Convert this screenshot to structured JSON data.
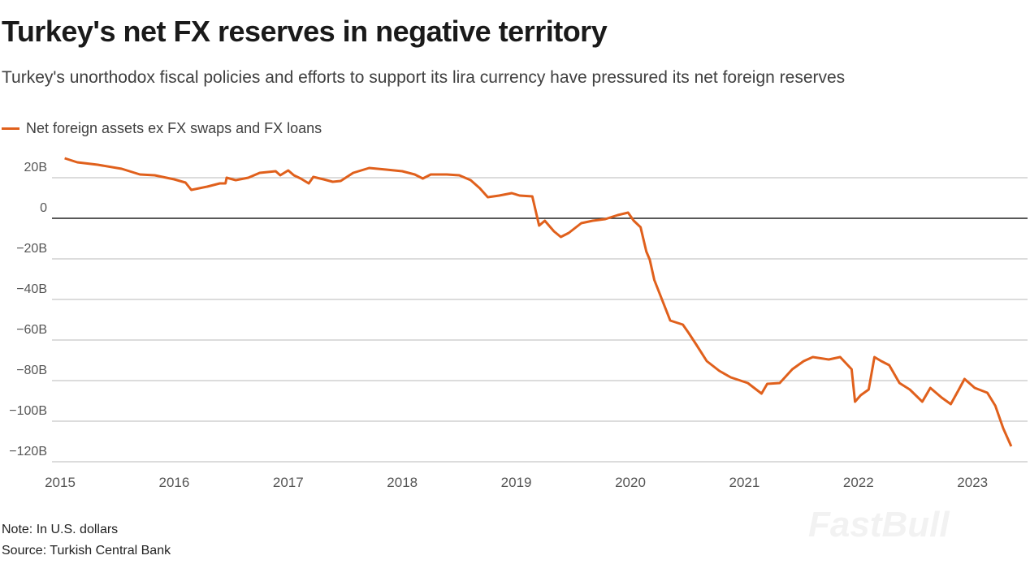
{
  "title": "Turkey's net FX reserves in negative territory",
  "subtitle": "Turkey's unorthodox fiscal policies and efforts to support its lira currency have pressured its net foreign reserves",
  "note": "Note: In U.S. dollars",
  "source": "Source: Turkish Central Bank",
  "watermark": "FastBull",
  "chart_data": {
    "type": "line",
    "title": "Turkey's net FX reserves in negative territory",
    "xlabel": "",
    "ylabel": "",
    "xlim": [
      2015,
      2023.4
    ],
    "ylim": [
      -120,
      30
    ],
    "grid": true,
    "legend_placement": "top-left",
    "x_ticks": [
      {
        "v": 2015,
        "label": "2015"
      },
      {
        "v": 2016,
        "label": "2016"
      },
      {
        "v": 2017,
        "label": "2017"
      },
      {
        "v": 2018,
        "label": "2018"
      },
      {
        "v": 2019,
        "label": "2019"
      },
      {
        "v": 2020,
        "label": "2020"
      },
      {
        "v": 2021,
        "label": "2021"
      },
      {
        "v": 2022,
        "label": "2022"
      },
      {
        "v": 2023,
        "label": "2023"
      }
    ],
    "y_ticks": [
      {
        "v": 20,
        "label": "20B"
      },
      {
        "v": 0,
        "label": "0"
      },
      {
        "v": -20,
        "label": "-20B"
      },
      {
        "v": -40,
        "label": "-40B"
      },
      {
        "v": -60,
        "label": "-60B"
      },
      {
        "v": -80,
        "label": "-80B"
      },
      {
        "v": -100,
        "label": "-100B"
      },
      {
        "v": -120,
        "label": "-120B"
      }
    ],
    "series": [
      {
        "name": "Net foreign assets ex FX swaps and FX loans",
        "color": "#e0601c",
        "x": [
          2015.04,
          2015.15,
          2015.33,
          2015.54,
          2015.7,
          2015.83,
          2016.0,
          2016.1,
          2016.15,
          2016.29,
          2016.4,
          2016.45,
          2016.46,
          2016.54,
          2016.65,
          2016.75,
          2016.89,
          2016.93,
          2017.0,
          2017.05,
          2017.11,
          2017.18,
          2017.22,
          2017.31,
          2017.39,
          2017.46,
          2017.57,
          2017.71,
          2017.86,
          2018.0,
          2018.11,
          2018.18,
          2018.25,
          2018.39,
          2018.5,
          2018.6,
          2018.68,
          2018.75,
          2018.85,
          2018.96,
          2019.03,
          2019.14,
          2019.17,
          2019.2,
          2019.25,
          2019.33,
          2019.39,
          2019.46,
          2019.57,
          2019.67,
          2019.78,
          2019.89,
          2019.98,
          2020.03,
          2020.09,
          2020.14,
          2020.17,
          2020.21,
          2020.28,
          2020.35,
          2020.46,
          2020.51,
          2020.58,
          2020.67,
          2020.78,
          2020.88,
          2021.03,
          2021.15,
          2021.2,
          2021.31,
          2021.42,
          2021.52,
          2021.6,
          2021.74,
          2021.84,
          2021.94,
          2021.97,
          2022.02,
          2022.09,
          2022.14,
          2022.2,
          2022.27,
          2022.36,
          2022.45,
          2022.56,
          2022.63,
          2022.73,
          2022.81,
          2022.88,
          2022.93,
          2023.02,
          2023.13,
          2023.2,
          2023.27,
          2023.34
        ],
        "y": [
          29.6,
          27.6,
          26.4,
          24.4,
          21.6,
          21.2,
          19.2,
          17.6,
          14,
          15.6,
          17.2,
          17.2,
          20,
          18.8,
          20,
          22.4,
          23.2,
          21.2,
          23.6,
          21.2,
          19.6,
          17.2,
          20.4,
          19.2,
          18,
          18.4,
          22.4,
          24.8,
          24,
          23.2,
          21.6,
          19.6,
          21.6,
          21.6,
          21.2,
          18.8,
          14.8,
          10.4,
          11.2,
          12.4,
          11.2,
          10.8,
          3.6,
          -3.6,
          -1.2,
          -6.4,
          -9.2,
          -7.2,
          -2.4,
          -1.2,
          -0.4,
          1.6,
          2.8,
          -1.2,
          -4.4,
          -16.4,
          -20.4,
          -30.4,
          -40.4,
          -50.4,
          -52.4,
          -56.4,
          -62.4,
          -70.4,
          -75.2,
          -78.4,
          -81.2,
          -86.4,
          -81.6,
          -81.2,
          -74.4,
          -70.4,
          -68.4,
          -69.6,
          -68.4,
          -74.4,
          -90.4,
          -87.2,
          -84.4,
          -68.4,
          -70.4,
          -72.4,
          -81.2,
          -84.4,
          -90.4,
          -83.6,
          -88.4,
          -91.6,
          -84.4,
          -79.2,
          -83.6,
          -86,
          -92.4,
          -103.6,
          -112.4
        ]
      }
    ]
  }
}
